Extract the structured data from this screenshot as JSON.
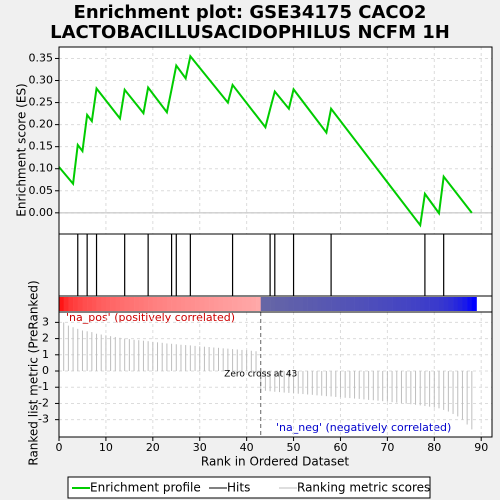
{
  "chart_data": [
    {
      "type": "line",
      "title": [
        "Enrichment plot: GSE34175 CACO2",
        "LACTOBACILLUSACIDOPHILUS NCFM 1H"
      ],
      "y_label": "Enrichment score (ES)",
      "xlim": [
        0,
        92.3
      ],
      "ylim": [
        -0.048,
        0.376
      ],
      "yticks": [
        {
          "value": 0,
          "label": "0.00"
        },
        {
          "value": 0.05,
          "label": "0.05"
        },
        {
          "value": 0.1,
          "label": "0.10"
        },
        {
          "value": 0.15,
          "label": "0.15"
        },
        {
          "value": 0.2,
          "label": "0.20"
        },
        {
          "value": 0.25,
          "label": "0.25"
        },
        {
          "value": 0.3,
          "label": "0.30"
        },
        {
          "value": 0.35,
          "label": "0.35"
        }
      ],
      "grid": true,
      "x": [
        0,
        3,
        4,
        5,
        6,
        7,
        8,
        13,
        14,
        18,
        19,
        23,
        24,
        25,
        27,
        28,
        36,
        37,
        44,
        45,
        46,
        49,
        50,
        57,
        58,
        77,
        78,
        81,
        82,
        88
      ],
      "series": [
        {
          "name": "Enrichment profile",
          "color": "#00cc00",
          "values": [
            0.104,
            0.066,
            0.154,
            0.14,
            0.222,
            0.208,
            0.282,
            0.214,
            0.279,
            0.226,
            0.284,
            0.228,
            0.28,
            0.334,
            0.305,
            0.355,
            0.25,
            0.29,
            0.194,
            0.235,
            0.275,
            0.236,
            0.28,
            0.182,
            0.236,
            -0.028,
            0.043,
            -0.001,
            0.082,
            0
          ]
        }
      ]
    },
    {
      "type": "hits",
      "series": [
        {
          "name": "Hits",
          "color": "#000000",
          "x": [
            4,
            6,
            8,
            14,
            19,
            24,
            25,
            28,
            37,
            45,
            46,
            50,
            58,
            78,
            82
          ]
        }
      ]
    },
    {
      "type": "bar",
      "y_label": "Ranked list metric (PreRanked)",
      "x_label": "Rank in Ordered Dataset",
      "xlim": [
        0,
        92.3
      ],
      "ylim": [
        -4.07,
        3.64
      ],
      "xticks": [
        0,
        10,
        20,
        30,
        40,
        50,
        60,
        70,
        80,
        90
      ],
      "yticks": [
        -3,
        -2,
        -1,
        0,
        1,
        2,
        3
      ],
      "grid": true,
      "series": [
        {
          "name": "Ranking metric scores",
          "color": "#bebebe",
          "values": [
            3.3,
            3.0,
            2.8,
            2.7,
            2.6,
            2.5,
            2.45,
            2.4,
            2.3,
            2.25,
            2.2,
            2.15,
            2.1,
            2.05,
            2.0,
            1.97,
            1.93,
            1.9,
            1.87,
            1.84,
            1.8,
            1.77,
            1.74,
            1.7,
            1.68,
            1.65,
            1.62,
            1.6,
            1.58,
            1.55,
            1.52,
            1.5,
            1.48,
            1.45,
            1.43,
            1.4,
            1.38,
            1.35,
            1.33,
            1.3,
            1.28,
            1.25,
            1.22,
            -1.2,
            -1.22,
            -1.25,
            -1.28,
            -1.3,
            -1.33,
            -1.35,
            -1.38,
            -1.4,
            -1.42,
            -1.45,
            -1.47,
            -1.5,
            -1.52,
            -1.55,
            -1.57,
            -1.6,
            -1.62,
            -1.65,
            -1.67,
            -1.7,
            -1.72,
            -1.75,
            -1.78,
            -1.8,
            -1.83,
            -1.86,
            -1.89,
            -1.92,
            -1.95,
            -1.98,
            -2.01,
            -2.05,
            -2.08,
            -2.12,
            -2.16,
            -2.2,
            -2.25,
            -2.3,
            -2.4,
            -2.5,
            -2.65,
            -2.8,
            -3.0,
            -3.3,
            -3.6
          ]
        }
      ],
      "annotations": [
        "'na_pos' (positively correlated)",
        "'na_neg' (negatively correlated)"
      ],
      "zero_cross": {
        "value": 43,
        "label": "Zero cross at 43"
      }
    }
  ]
}
